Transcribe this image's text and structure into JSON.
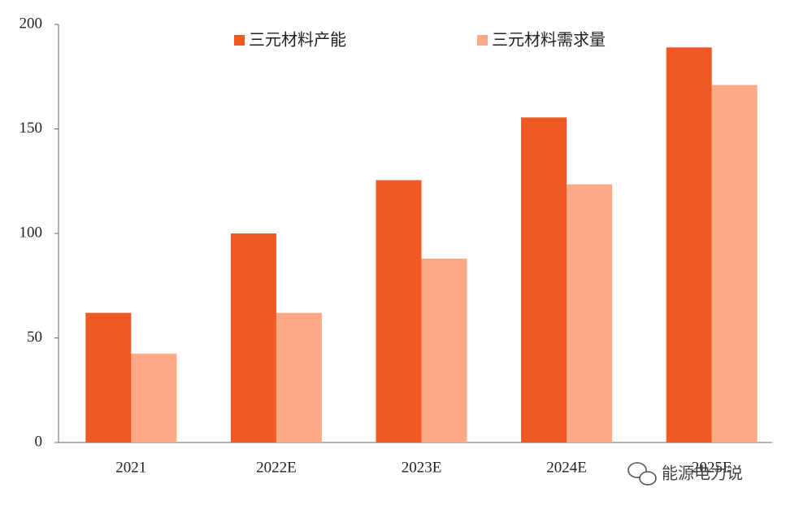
{
  "chart_data": {
    "type": "bar",
    "categories": [
      "2021",
      "2022E",
      "2023E",
      "2024E",
      "2025E"
    ],
    "series": [
      {
        "name": "三元材料产能",
        "color": "#f05a22",
        "values": [
          62,
          100,
          125.5,
          155.5,
          189
        ]
      },
      {
        "name": "三元材料需求量",
        "color": "#fda985",
        "values": [
          42.5,
          62,
          88,
          123.5,
          171
        ]
      }
    ],
    "ylim": [
      0,
      200
    ],
    "yticks": [
      0,
      50,
      100,
      150,
      200
    ],
    "grid": false,
    "legend": "top",
    "watermark": "能源电力说"
  }
}
